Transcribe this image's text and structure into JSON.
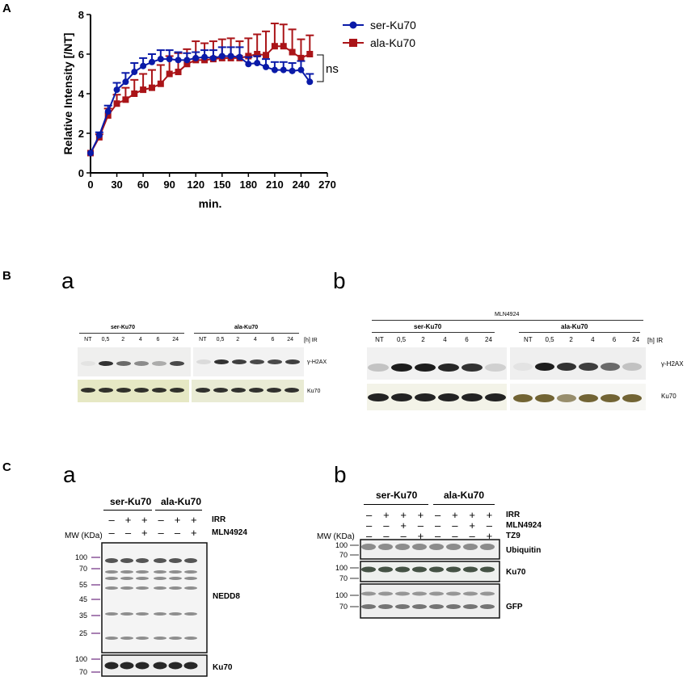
{
  "panels": {
    "A": "A",
    "B": "B",
    "C": "C",
    "Ba": "a",
    "Bb": "b",
    "Ca": "a",
    "Cb": "b"
  },
  "chart_data": {
    "type": "line",
    "title": "",
    "xlabel": "min.",
    "ylabel": "Relative Intensity [/NT]",
    "xlim": [
      0,
      270
    ],
    "ylim": [
      0,
      8
    ],
    "xticks": [
      0,
      30,
      60,
      90,
      120,
      150,
      180,
      210,
      240,
      270
    ],
    "yticks": [
      0,
      2,
      4,
      6,
      8
    ],
    "legend_position": "top-right",
    "annotation": "ns",
    "series": [
      {
        "name": "ser-Ku70",
        "color": "#0a1aa8",
        "marker": "circle",
        "x": [
          0,
          10,
          20,
          30,
          40,
          50,
          60,
          70,
          80,
          90,
          100,
          110,
          120,
          130,
          140,
          150,
          160,
          170,
          180,
          190,
          200,
          210,
          220,
          230,
          240,
          250
        ],
        "y": [
          1.0,
          1.9,
          3.1,
          4.2,
          4.6,
          5.1,
          5.4,
          5.6,
          5.75,
          5.75,
          5.7,
          5.7,
          5.8,
          5.85,
          5.8,
          5.9,
          5.9,
          5.85,
          5.5,
          5.55,
          5.35,
          5.2,
          5.2,
          5.15,
          5.2,
          4.6
        ],
        "err": [
          0.0,
          0.15,
          0.3,
          0.35,
          0.45,
          0.45,
          0.4,
          0.4,
          0.45,
          0.45,
          0.4,
          0.35,
          0.3,
          0.35,
          0.4,
          0.45,
          0.45,
          0.5,
          0.35,
          0.35,
          0.4,
          0.4,
          0.4,
          0.4,
          0.45,
          0.4
        ]
      },
      {
        "name": "ala-Ku70",
        "color": "#aa1418",
        "marker": "square",
        "x": [
          0,
          10,
          20,
          30,
          40,
          50,
          60,
          70,
          80,
          90,
          100,
          110,
          120,
          130,
          140,
          150,
          160,
          170,
          180,
          190,
          200,
          210,
          220,
          230,
          240,
          250
        ],
        "y": [
          1.0,
          1.8,
          2.9,
          3.5,
          3.7,
          4.0,
          4.2,
          4.3,
          4.5,
          5.0,
          5.1,
          5.5,
          5.7,
          5.7,
          5.75,
          5.8,
          5.8,
          5.8,
          5.9,
          6.0,
          5.95,
          6.4,
          6.4,
          6.1,
          5.8,
          6.0
        ],
        "err": [
          0.0,
          0.15,
          0.35,
          0.45,
          0.6,
          0.7,
          0.8,
          0.9,
          0.95,
          0.9,
          0.95,
          0.75,
          0.95,
          0.85,
          0.9,
          0.95,
          1.0,
          0.85,
          0.9,
          1.0,
          1.2,
          1.15,
          1.1,
          1.15,
          0.95,
          0.95
        ]
      }
    ]
  },
  "blot_B_a": {
    "group1": "ser-Ku70",
    "group2": "ala-Ku70",
    "time_unit": "[h] IR",
    "lanes": [
      "NT",
      "0,5",
      "2",
      "4",
      "6",
      "24"
    ],
    "band1": "γ-H2AX",
    "band2": "Ku70"
  },
  "blot_B_b": {
    "treatment": "MLN4924",
    "group1": "ser-Ku70",
    "group2": "ala-Ku70",
    "time_unit": "[h] IR",
    "lanes": [
      "NT",
      "0,5",
      "2",
      "4",
      "6",
      "24"
    ],
    "band1": "γ-H2AX",
    "band2": "Ku70"
  },
  "blot_C_a": {
    "group1": "ser-Ku70",
    "group2": "ala-Ku70",
    "row1_label": "IRR",
    "row1": [
      "–",
      "+",
      "+",
      "–",
      "+",
      "+"
    ],
    "row2_label": "MLN4924",
    "row2": [
      "–",
      "–",
      "+",
      "–",
      "–",
      "+"
    ],
    "mw_label": "MW (KDa)",
    "markers": [
      "100",
      "70",
      "55",
      "45",
      "35",
      "25"
    ],
    "ku_markers": [
      "100",
      "70"
    ],
    "band1": "NEDD8",
    "band2": "Ku70"
  },
  "blot_C_b": {
    "group1": "ser-Ku70",
    "group2": "ala-Ku70",
    "row1_label": "IRR",
    "row1": [
      "–",
      "+",
      "+",
      "+",
      "–",
      "+",
      "+",
      "+"
    ],
    "row2_label": "MLN4924",
    "row2": [
      "–",
      "–",
      "+",
      "–",
      "–",
      "–",
      "+",
      "–"
    ],
    "row3_label": "TZ9",
    "row3": [
      "–",
      "–",
      "–",
      "+",
      "–",
      "–",
      "–",
      "+"
    ],
    "mw_label": "MW (KDa)",
    "ub_markers": [
      "100",
      "70"
    ],
    "ku_markers": [
      "100",
      "70"
    ],
    "gfp_markers": [
      "100",
      "70"
    ],
    "band1": "Ubiquitin",
    "band2": "Ku70",
    "band3": "GFP"
  }
}
